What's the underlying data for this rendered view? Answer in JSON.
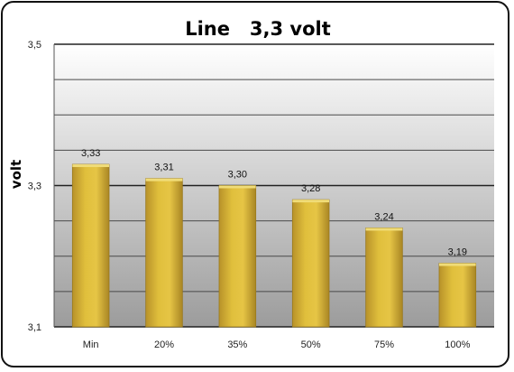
{
  "chart_data": {
    "type": "bar",
    "title": "Line   3,3 volt",
    "ylabel": "volt",
    "xlabel": "",
    "categories": [
      "Min",
      "20%",
      "35%",
      "50%",
      "75%",
      "100%"
    ],
    "values": [
      3.33,
      3.31,
      3.3,
      3.28,
      3.24,
      3.19
    ],
    "value_labels": [
      "3,33",
      "3,31",
      "3,30",
      "3,28",
      "3,24",
      "3,19"
    ],
    "ylim": [
      3.1,
      3.5
    ],
    "yticks": [
      3.1,
      3.3,
      3.5
    ],
    "ytick_labels": [
      "3,1",
      "3,3",
      "3,5"
    ],
    "grid_step": 0.05,
    "grid": true,
    "legend": "none",
    "colors": {
      "bar_top": "#f0dc78",
      "bar_mid": "#e0bf3c",
      "bar_bottom": "#b8922a",
      "bar_edge": "#9a7a1c",
      "plot_bg_top": "#ffffff",
      "plot_bg_bottom": "#9c9c9c"
    }
  }
}
